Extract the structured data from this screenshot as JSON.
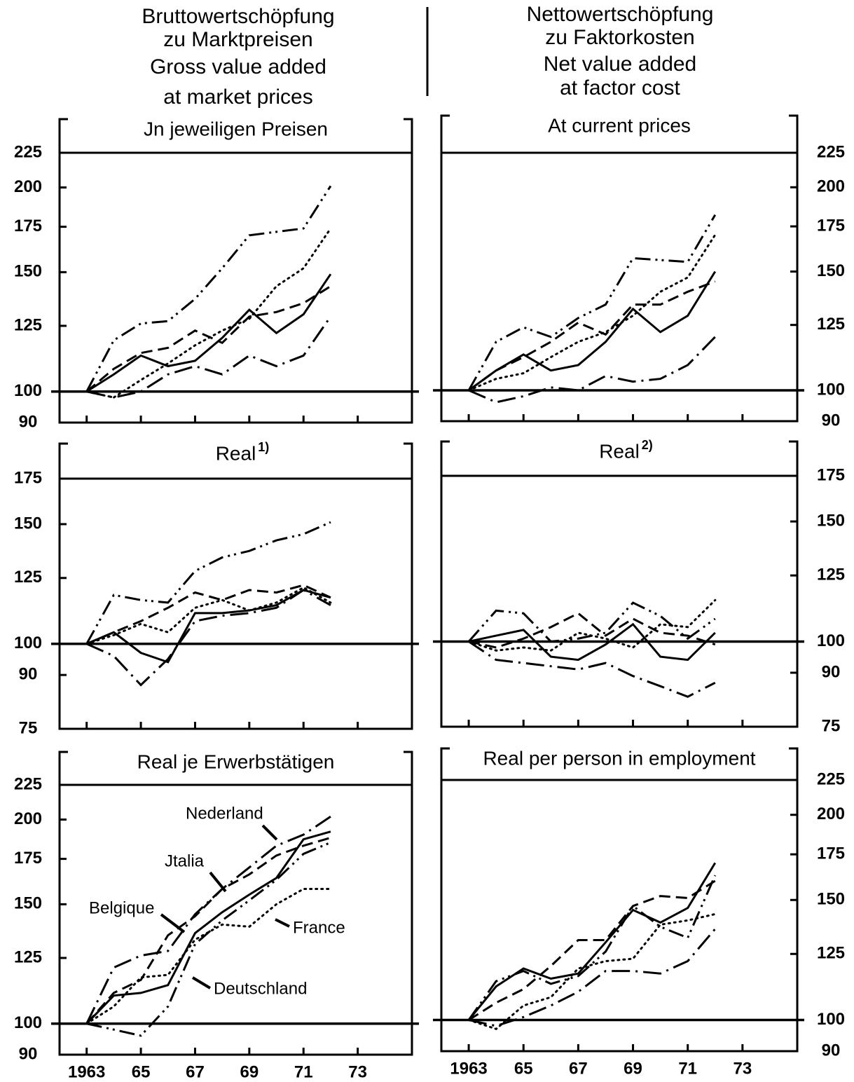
{
  "columns": [
    {
      "lines": [
        "Bruttowertschöpfung",
        "zu Marktpreisen",
        "Gross value added",
        "at market prices"
      ]
    },
    {
      "lines": [
        "Nettowertschöpfung",
        "zu Faktorkosten",
        "Net value added",
        "at factor cost"
      ]
    }
  ],
  "chart_data": [
    {
      "type": "line",
      "title": "Jn jeweiligen Preisen",
      "log_y": true,
      "y_axis_side": "left",
      "reference_line": 100,
      "xlim": [
        1962,
        1975
      ],
      "xticks": [
        1963,
        1965,
        1967,
        1969,
        1971,
        1973
      ],
      "ylim": [
        90,
        225
      ],
      "yticks": [
        90,
        100,
        125,
        150,
        175,
        200,
        225
      ],
      "x": [
        1963,
        1964,
        1965,
        1966,
        1967,
        1968,
        1969,
        1970,
        1971,
        1972
      ],
      "series": [
        {
          "style": "solid",
          "values": [
            100,
            106,
            113,
            109,
            111,
            120,
            132,
            122,
            130,
            149
          ]
        },
        {
          "style": "dotted",
          "values": [
            100,
            98,
            104,
            110,
            117,
            123,
            128,
            143,
            152,
            174
          ]
        },
        {
          "style": "dashdotdot",
          "values": [
            100,
            119,
            126,
            127,
            137,
            152,
            170,
            172,
            174,
            201
          ]
        },
        {
          "style": "dashdot",
          "values": [
            100,
            98,
            100,
            106,
            109,
            106,
            113,
            109,
            113,
            129
          ]
        },
        {
          "style": "dashed",
          "values": [
            100,
            108,
            114,
            116,
            123,
            118,
            129,
            131,
            135,
            143
          ]
        }
      ]
    },
    {
      "type": "line",
      "title": "At current prices",
      "log_y": true,
      "y_axis_side": "right",
      "reference_line": 100,
      "xlim": [
        1962,
        1975
      ],
      "xticks": [
        1963,
        1965,
        1967,
        1969,
        1971,
        1973
      ],
      "ylim": [
        90,
        225
      ],
      "yticks": [
        90,
        100,
        125,
        150,
        175,
        200,
        225
      ],
      "x": [
        1963,
        1964,
        1965,
        1966,
        1967,
        1968,
        1969,
        1970,
        1971,
        1972
      ],
      "series": [
        {
          "style": "solid",
          "values": [
            100,
            107,
            113,
            107,
            109,
            118,
            132,
            122,
            129,
            150
          ]
        },
        {
          "style": "dotted",
          "values": [
            100,
            104,
            106,
            112,
            118,
            122,
            129,
            140,
            147,
            170
          ]
        },
        {
          "style": "dashdotdot",
          "values": [
            100,
            118,
            124,
            120,
            128,
            134,
            157,
            156,
            155,
            182
          ]
        },
        {
          "style": "dashdot",
          "values": [
            100,
            96,
            98,
            101,
            100,
            105,
            103,
            104,
            109,
            120
          ]
        },
        {
          "style": "dashed",
          "values": [
            100,
            107,
            112,
            118,
            126,
            121,
            134,
            134,
            140,
            145
          ]
        }
      ]
    },
    {
      "type": "line",
      "title": "Real",
      "title_note": "1)",
      "log_y": true,
      "y_axis_side": "left",
      "reference_line": 100,
      "xlim": [
        1962,
        1975
      ],
      "xticks": [
        1963,
        1965,
        1967,
        1969,
        1971,
        1973
      ],
      "ylim": [
        75,
        175
      ],
      "yticks": [
        75,
        90,
        100,
        125,
        150,
        175
      ],
      "x": [
        1963,
        1964,
        1965,
        1966,
        1967,
        1968,
        1969,
        1970,
        1971,
        1972
      ],
      "series": [
        {
          "style": "solid",
          "values": [
            100,
            104,
            97,
            94,
            111,
            111,
            112,
            114,
            120,
            117
          ]
        },
        {
          "style": "dotted",
          "values": [
            100,
            103,
            107,
            104,
            113,
            116,
            112,
            115,
            121,
            115
          ]
        },
        {
          "style": "dashdotdot",
          "values": [
            100,
            118,
            116,
            115,
            128,
            134,
            137,
            142,
            145,
            151
          ]
        },
        {
          "style": "dashdot",
          "values": [
            100,
            96,
            87,
            95,
            108,
            110,
            111,
            113,
            120,
            114
          ]
        },
        {
          "style": "dashed",
          "values": [
            100,
            104,
            108,
            113,
            119,
            116,
            120,
            119,
            122,
            117
          ]
        }
      ]
    },
    {
      "type": "line",
      "title": "Real",
      "title_note": "2)",
      "log_y": true,
      "y_axis_side": "right",
      "reference_line": 100,
      "xlim": [
        1962,
        1975
      ],
      "xticks": [
        1963,
        1965,
        1967,
        1969,
        1971,
        1973
      ],
      "ylim": [
        75,
        175
      ],
      "yticks": [
        75,
        90,
        100,
        125,
        150,
        175
      ],
      "x": [
        1963,
        1964,
        1965,
        1966,
        1967,
        1968,
        1969,
        1970,
        1971,
        1972
      ],
      "series": [
        {
          "style": "solid",
          "values": [
            100,
            102,
            104,
            95,
            94,
            99,
            106,
            95,
            94,
            103
          ]
        },
        {
          "style": "dotted",
          "values": [
            100,
            97,
            98,
            97,
            103,
            101,
            98,
            106,
            105,
            115
          ]
        },
        {
          "style": "dashdotdot",
          "values": [
            100,
            111,
            110,
            100,
            101,
            103,
            114,
            109,
            101,
            108
          ]
        },
        {
          "style": "dashdot",
          "values": [
            100,
            94,
            93,
            92,
            91,
            93,
            89,
            86,
            83,
            87
          ]
        },
        {
          "style": "dashed",
          "values": [
            100,
            98,
            101,
            105,
            110,
            102,
            108,
            103,
            102,
            99
          ]
        }
      ]
    },
    {
      "type": "line",
      "title": "Real je Erwerbstätigen",
      "log_y": true,
      "y_axis_side": "left",
      "reference_line": 100,
      "xlim": [
        1962,
        1975
      ],
      "xticks": [
        {
          "value": 1963,
          "label": "1963"
        },
        {
          "value": 1965,
          "label": "65"
        },
        {
          "value": 1967,
          "label": "67"
        },
        {
          "value": 1969,
          "label": "69"
        },
        {
          "value": 1971,
          "label": "71"
        },
        {
          "value": 1973,
          "label": "73"
        }
      ],
      "ylim": [
        90,
        225
      ],
      "yticks": [
        90,
        100,
        125,
        150,
        175,
        200,
        225
      ],
      "x": [
        1963,
        1964,
        1965,
        1966,
        1967,
        1968,
        1969,
        1970,
        1971,
        1972
      ],
      "series": [
        {
          "name": "Deutschland",
          "style": "solid",
          "values": [
            100,
            110,
            111,
            114,
            136,
            146,
            155,
            164,
            187,
            192
          ]
        },
        {
          "name": "France",
          "style": "dotted",
          "values": [
            100,
            106,
            117,
            118,
            133,
            140,
            139,
            150,
            158,
            158
          ]
        },
        {
          "name": "Jtalia",
          "style": "dashdotdot",
          "values": [
            100,
            98,
            96,
            106,
            131,
            142,
            152,
            163,
            178,
            185
          ]
        },
        {
          "name": "Nederland",
          "style": "dashdot",
          "values": [
            100,
            121,
            126,
            128,
            145,
            158,
            170,
            183,
            190,
            202
          ]
        },
        {
          "name": "Belgique",
          "style": "dashed",
          "values": [
            100,
            111,
            116,
            135,
            144,
            158,
            166,
            177,
            183,
            188
          ]
        }
      ]
    },
    {
      "type": "line",
      "title": "Real per person in employment",
      "log_y": true,
      "y_axis_side": "right",
      "reference_line": 100,
      "xlim": [
        1962,
        1975
      ],
      "xticks": [
        {
          "value": 1963,
          "label": "1963"
        },
        {
          "value": 1965,
          "label": "65"
        },
        {
          "value": 1967,
          "label": "67"
        },
        {
          "value": 1969,
          "label": "69"
        },
        {
          "value": 1971,
          "label": "71"
        },
        {
          "value": 1973,
          "label": "73"
        }
      ],
      "ylim": [
        90,
        225
      ],
      "yticks": [
        90,
        100,
        125,
        150,
        175,
        200,
        225
      ],
      "x": [
        1963,
        1964,
        1965,
        1966,
        1967,
        1968,
        1969,
        1970,
        1971,
        1972
      ],
      "series": [
        {
          "style": "solid",
          "values": [
            100,
            112,
            119,
            115,
            117,
            130,
            145,
            139,
            146,
            170
          ]
        },
        {
          "style": "dotted",
          "values": [
            100,
            97,
            105,
            108,
            119,
            122,
            123,
            138,
            140,
            143
          ]
        },
        {
          "style": "dashdotdot",
          "values": [
            100,
            114,
            118,
            113,
            116,
            126,
            147,
            137,
            132,
            163
          ]
        },
        {
          "style": "dashdot",
          "values": [
            100,
            98,
            101,
            105,
            110,
            118,
            118,
            117,
            122,
            136
          ]
        },
        {
          "style": "dashed",
          "values": [
            100,
            106,
            111,
            120,
            131,
            131,
            147,
            152,
            151,
            160
          ]
        }
      ]
    }
  ]
}
